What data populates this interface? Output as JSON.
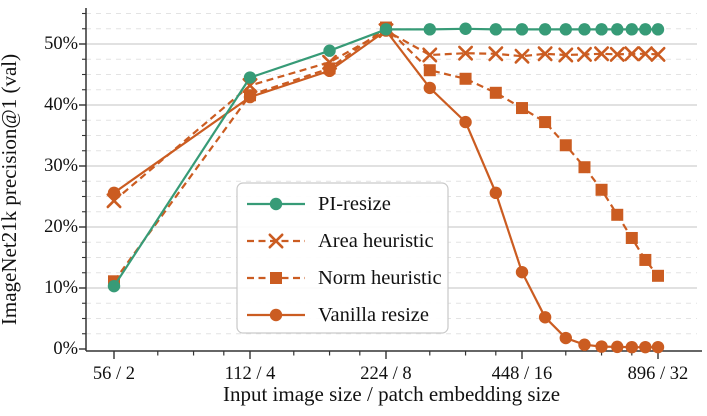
{
  "figure": {
    "background": "#ffffff",
    "text_color": "#111111",
    "spine_color": "#333333",
    "grid_major_color": "#cfcfcf",
    "grid_minor_color": "#e3e3e3"
  },
  "chart_data": {
    "type": "line",
    "title": "",
    "xlabel": "Input image size / patch embedding size",
    "ylabel": "ImageNet21k precision@1 (val)",
    "xscale": "log2",
    "xlim": [
      49,
      1120
    ],
    "ylim": [
      0,
      56
    ],
    "grid": "horizontal-major-solid-minor-dashed",
    "y_major_ticks": [
      0,
      10,
      20,
      30,
      40,
      50
    ],
    "y_tick_labels": [
      "0%",
      "10%",
      "20%",
      "30%",
      "40%",
      "50%"
    ],
    "y_minor_step": 2.5,
    "x_major_ticks": [
      56,
      112,
      224,
      448,
      896
    ],
    "x_tick_labels": [
      "56 / 2",
      "112 / 4",
      "224 / 8",
      "448 / 16",
      "896 / 32"
    ],
    "x_minor_ticks": [
      70,
      84,
      98,
      140,
      168,
      196,
      280,
      336,
      392,
      560,
      672,
      784
    ],
    "x": [
      56,
      112,
      168,
      224,
      280,
      336,
      392,
      448,
      504,
      560,
      616,
      672,
      728,
      784,
      840,
      896
    ],
    "series": [
      {
        "name": "PI-resize",
        "color": "#379b77",
        "line_style": "solid",
        "marker": "circle",
        "values": [
          10.3,
          44.5,
          48.9,
          52.4,
          52.4,
          52.5,
          52.4,
          52.4,
          52.4,
          52.4,
          52.4,
          52.4,
          52.4,
          52.4,
          52.4,
          52.4
        ]
      },
      {
        "name": "Area heuristic",
        "color": "#cb5c21",
        "line_style": "dashed",
        "marker": "x",
        "values": [
          24.3,
          43.2,
          47.0,
          52.2,
          48.2,
          48.5,
          48.4,
          48.0,
          48.4,
          48.2,
          48.3,
          48.4,
          48.3,
          48.4,
          48.4,
          48.3
        ]
      },
      {
        "name": "Norm heuristic",
        "color": "#cb5c21",
        "line_style": "dashed",
        "marker": "square",
        "values": [
          11.1,
          41.6,
          46.0,
          52.7,
          45.7,
          44.3,
          42.0,
          39.5,
          37.2,
          33.4,
          29.8,
          26.1,
          22.0,
          18.2,
          14.6,
          12.0
        ]
      },
      {
        "name": "Vanilla resize",
        "color": "#cb5c21",
        "line_style": "solid",
        "marker": "circle",
        "values": [
          25.6,
          41.3,
          45.6,
          52.2,
          42.8,
          37.2,
          25.6,
          12.6,
          5.2,
          1.8,
          0.7,
          0.4,
          0.35,
          0.3,
          0.3,
          0.3
        ]
      }
    ],
    "draw_order": [
      "Area heuristic",
      "Vanilla resize",
      "Norm heuristic",
      "PI-resize"
    ],
    "legend": {
      "position": "center",
      "entries": [
        "PI-resize",
        "Area heuristic",
        "Norm heuristic",
        "Vanilla resize"
      ],
      "border_color": "#c9c9c9",
      "background": "#ffffff"
    }
  }
}
